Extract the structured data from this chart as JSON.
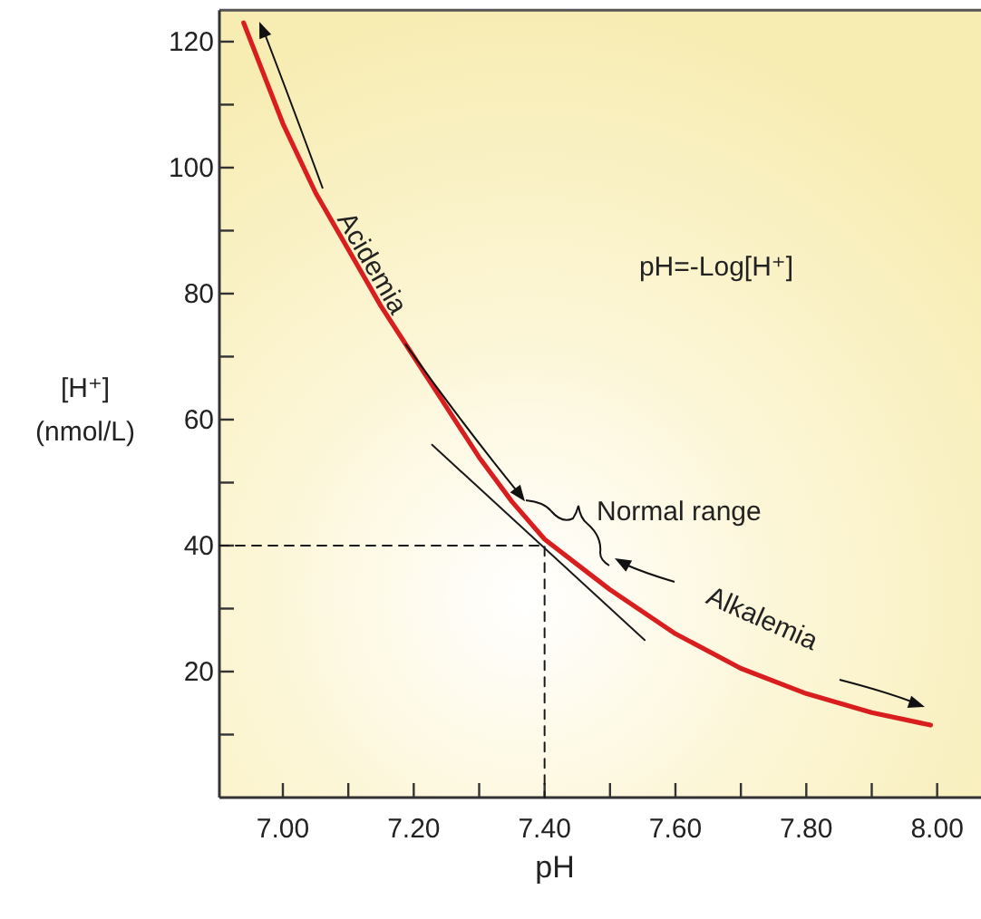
{
  "chart_data": {
    "type": "line",
    "xlabel": "pH",
    "ylabel": "[H⁺]\n(nmol/L)",
    "xlim": [
      6.903,
      8.067
    ],
    "ylim": [
      0,
      125
    ],
    "xticks": [
      {
        "value": 7.0,
        "label": "7.00"
      },
      {
        "value": 7.1,
        "label": null
      },
      {
        "value": 7.2,
        "label": "7.20"
      },
      {
        "value": 7.3,
        "label": null
      },
      {
        "value": 7.4,
        "label": "7.40"
      },
      {
        "value": 7.5,
        "label": null
      },
      {
        "value": 7.6,
        "label": "7.60"
      },
      {
        "value": 7.7,
        "label": null
      },
      {
        "value": 7.8,
        "label": "7.80"
      },
      {
        "value": 7.9,
        "label": null
      },
      {
        "value": 8.0,
        "label": "8.00"
      }
    ],
    "yticks": [
      {
        "value": 10,
        "label": null
      },
      20,
      {
        "value": 30,
        "label": null
      },
      40,
      {
        "value": 50,
        "label": null
      },
      60,
      {
        "value": 70,
        "label": null
      },
      80,
      {
        "value": 90,
        "label": null
      },
      100,
      {
        "value": 110,
        "label": null
      },
      120
    ],
    "grid": false,
    "marker": "none",
    "series": [
      {
        "color": "#d81e1e",
        "x": [
          6.94,
          7.0,
          7.05,
          7.1,
          7.15,
          7.2,
          7.25,
          7.3,
          7.35,
          7.4,
          7.45,
          7.5,
          7.6,
          7.7,
          7.8,
          7.9,
          7.99
        ],
        "values": [
          123,
          107,
          96,
          87,
          78,
          70,
          62,
          54,
          47,
          41,
          37,
          33,
          26,
          20.5,
          16.5,
          13.5,
          11.5
        ]
      },
      {
        "color": "#1a1a1a",
        "x": [
          7.228,
          7.553
        ],
        "values": [
          56,
          25
        ]
      },
      {
        "color": "#1a1a1a",
        "line_style": "dashed",
        "x": [
          6.903,
          7.4,
          7.4
        ],
        "values": [
          40,
          40,
          0
        ]
      }
    ],
    "annotations": [
      "pH=-Log[H⁺]",
      {
        "text": "Acidemia",
        "x": 7.37,
        "y": 47
      },
      "Normal range",
      "Alkalemia"
    ]
  }
}
